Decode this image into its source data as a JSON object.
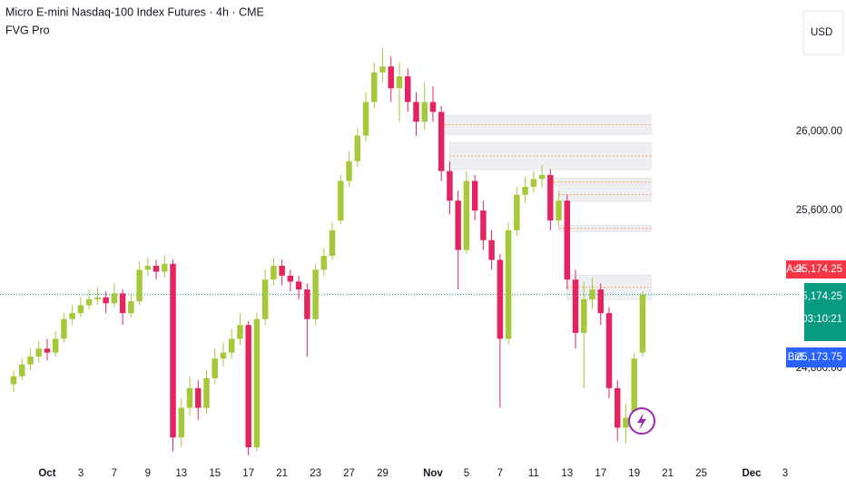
{
  "header": {
    "title": "Micro E-mini Nasdaq-100 Index Futures · 4h · CME",
    "indicator": "FVG Pro"
  },
  "currency": "USD",
  "quote": {
    "ask_label": "Ask",
    "ask": "25,174.25",
    "bid_label": "Bid",
    "bid": "25,173.75",
    "countdown": "03:10:21"
  },
  "chart_data": {
    "type": "candlestick",
    "categories": [
      null,
      null,
      null,
      null,
      "Oct",
      null,
      null,
      null,
      "3",
      null,
      null,
      null,
      "7",
      null,
      null,
      null,
      "9",
      null,
      null,
      null,
      "13",
      null,
      null,
      null,
      "15",
      null,
      null,
      null,
      "17",
      null,
      null,
      null,
      "21",
      null,
      null,
      null,
      "23",
      null,
      null,
      null,
      "27",
      null,
      null,
      null,
      "29",
      null,
      null,
      null,
      null,
      null,
      "Nov",
      null,
      null,
      null,
      "5",
      null,
      null,
      null,
      "7",
      null,
      null,
      null,
      "11",
      null,
      null,
      null,
      "13",
      null,
      null,
      null,
      "17",
      null,
      null,
      null,
      "19",
      null,
      null,
      null,
      "21",
      null,
      null,
      null,
      "25",
      null,
      null,
      null,
      null,
      null,
      "Dec",
      null,
      null,
      null,
      "3",
      null
    ],
    "open": [
      24720,
      24760,
      24820,
      24860,
      24900,
      24880,
      24950,
      25050,
      25080,
      25120,
      25150,
      25160,
      25130,
      25180,
      25080,
      25140,
      25300,
      25320,
      25290,
      25330,
      24450,
      24600,
      24700,
      24600,
      24750,
      24850,
      24880,
      24950,
      25020,
      24400,
      25050,
      25250,
      25320,
      25270,
      25240,
      25200,
      25050,
      25300,
      25370,
      25550,
      25750,
      25850,
      25980,
      26150,
      26300,
      26330,
      26220,
      26280,
      26150,
      26050,
      26150,
      26100,
      25800,
      25650,
      25400,
      25750,
      25600,
      25450,
      25350,
      24950,
      25500,
      25680,
      25720,
      25760,
      25780,
      25550,
      25650,
      25250,
      24980,
      25150,
      25200,
      25080,
      24700,
      24500,
      24550,
      24880,
      null,
      null,
      null,
      null,
      null,
      null,
      null,
      null,
      null,
      null,
      null,
      null,
      null,
      null,
      null,
      null,
      null,
      null
    ],
    "high": [
      24790,
      24850,
      24900,
      24940,
      24950,
      24990,
      25080,
      25120,
      25160,
      25200,
      25210,
      25190,
      25230,
      25200,
      25180,
      25340,
      25360,
      25350,
      25370,
      25350,
      24650,
      24760,
      24740,
      24790,
      24900,
      24930,
      25000,
      25080,
      25040,
      25080,
      25300,
      25360,
      25350,
      25300,
      25270,
      25230,
      25330,
      25410,
      25540,
      25780,
      25900,
      26020,
      26200,
      26350,
      26420,
      26380,
      26350,
      26320,
      26200,
      26250,
      26230,
      26130,
      25850,
      25700,
      25800,
      25780,
      25650,
      25500,
      25380,
      25540,
      25720,
      25770,
      25800,
      25830,
      25810,
      25700,
      25680,
      25300,
      25240,
      25260,
      25230,
      25110,
      24740,
      24620,
      24880,
      25190,
      null,
      null,
      null,
      null,
      null,
      null,
      null,
      null,
      null,
      null,
      null,
      null,
      null,
      null,
      null,
      null,
      null,
      null
    ],
    "low": [
      24680,
      24740,
      24790,
      24830,
      24840,
      24860,
      24930,
      25020,
      25060,
      25100,
      25120,
      25080,
      25110,
      25020,
      25060,
      25120,
      25270,
      25250,
      25260,
      24380,
      24400,
      24560,
      24540,
      24570,
      24720,
      24810,
      24850,
      24920,
      24360,
      24380,
      25020,
      25220,
      25220,
      25190,
      25150,
      24860,
      25020,
      25270,
      25350,
      25530,
      25720,
      25820,
      25950,
      26120,
      26250,
      26150,
      26050,
      26100,
      25980,
      26010,
      26050,
      25750,
      25580,
      25200,
      25380,
      25550,
      25400,
      25300,
      24600,
      24920,
      25470,
      25640,
      25690,
      25720,
      25500,
      25520,
      25200,
      24900,
      24700,
      25100,
      25020,
      24650,
      24430,
      24420,
      24520,
      24860,
      null,
      null,
      null,
      null,
      null,
      null,
      null,
      null,
      null,
      null,
      null,
      null,
      null,
      null,
      null,
      null,
      null,
      null
    ],
    "close": [
      24760,
      24820,
      24860,
      24900,
      24880,
      24950,
      25050,
      25080,
      25120,
      25150,
      25160,
      25130,
      25180,
      25080,
      25140,
      25300,
      25320,
      25290,
      25330,
      24450,
      24600,
      24700,
      24600,
      24750,
      24850,
      24880,
      24950,
      25020,
      24400,
      25050,
      25250,
      25320,
      25270,
      25240,
      25200,
      25050,
      25300,
      25370,
      25500,
      25750,
      25850,
      25980,
      26150,
      26300,
      26330,
      26220,
      26280,
      26150,
      26050,
      26150,
      26100,
      25800,
      25650,
      25400,
      25750,
      25600,
      25450,
      25350,
      24950,
      25500,
      25680,
      25720,
      25760,
      25780,
      25550,
      25650,
      25250,
      24980,
      25150,
      25200,
      25080,
      24700,
      24500,
      24550,
      24850,
      25174.25,
      null,
      null,
      null,
      null,
      null,
      null,
      null,
      null,
      null,
      null,
      null,
      null,
      null,
      null,
      null,
      null,
      null,
      null
    ],
    "up_color": "#a6c93a",
    "down_color": "#e3245f",
    "ylim": [
      24345,
      26667
    ],
    "yticks": [
      {
        "value": 24800,
        "label": "24,800.00"
      },
      {
        "value": 25600,
        "label": "25,600.00"
      },
      {
        "value": 26000,
        "label": "26,000.00"
      }
    ],
    "last_price": {
      "value": 25174.25,
      "label": "25,174.25"
    },
    "zones": [
      {
        "start": 51,
        "end": 76,
        "low": 25986,
        "high": 26083
      },
      {
        "start": 52,
        "end": 76,
        "low": 25807,
        "high": 25945
      },
      {
        "start": 64,
        "end": 76,
        "low": 25724,
        "high": 25765
      },
      {
        "start": 65,
        "end": 76,
        "low": 25646,
        "high": 25715
      },
      {
        "start": 65,
        "end": 76,
        "low": 25494,
        "high": 25526
      },
      {
        "start": 66,
        "end": 76,
        "low": 25149,
        "high": 25273
      }
    ],
    "grid": false
  }
}
